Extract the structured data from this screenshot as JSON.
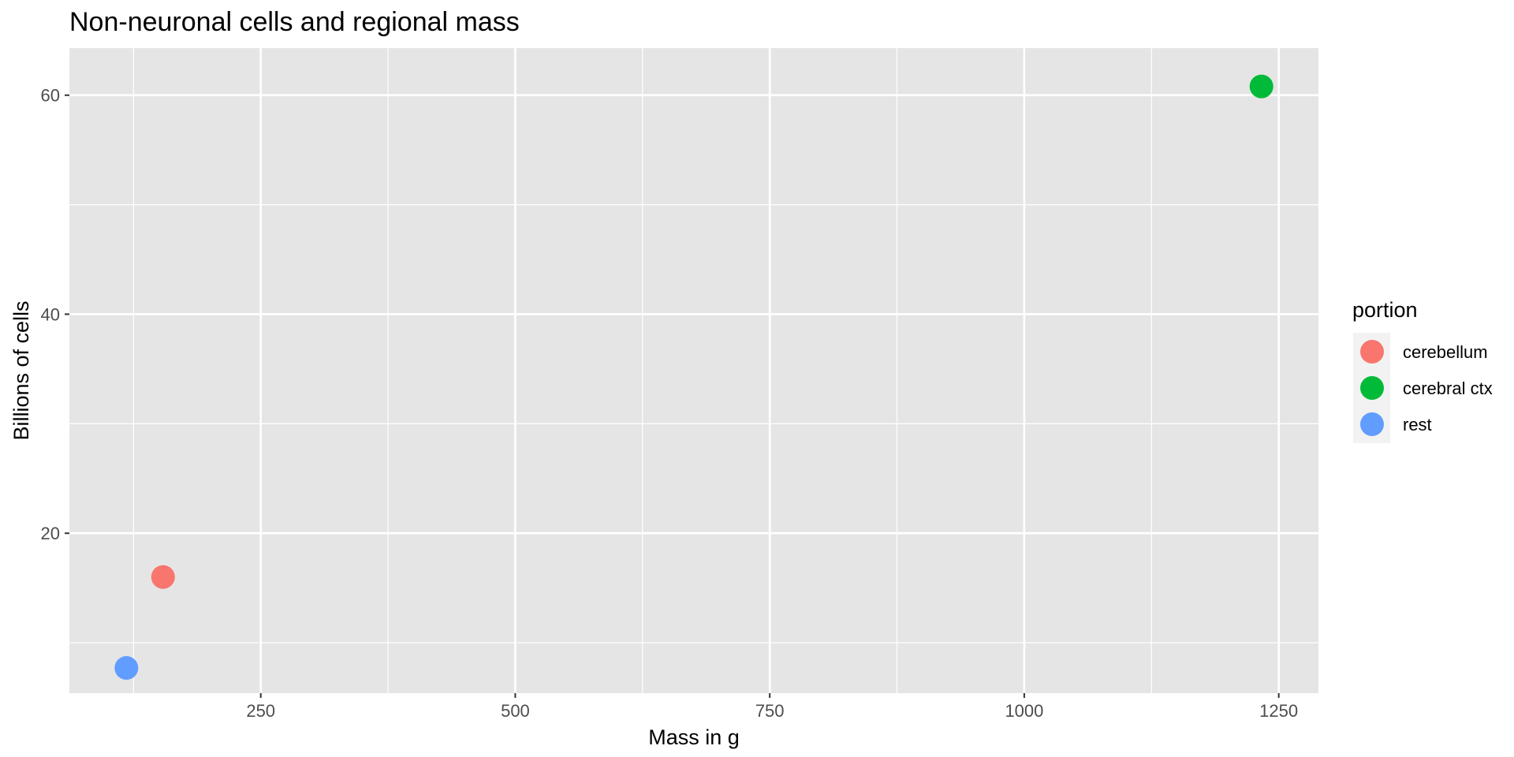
{
  "chart_data": {
    "type": "scatter",
    "title": "Non-neuronal cells and regional mass",
    "xlabel": "Mass in g",
    "ylabel": "Billions of cells",
    "xlim": [
      62,
      1289
    ],
    "ylim": [
      5.4,
      64.3
    ],
    "x_ticks": [
      250,
      500,
      750,
      1000,
      1250
    ],
    "x_tick_labels": [
      "250",
      "500",
      "750",
      "1000",
      "1250"
    ],
    "y_ticks": [
      20,
      40,
      60
    ],
    "y_tick_labels": [
      "20",
      "40",
      "60"
    ],
    "grid": true,
    "legend": {
      "title": "portion",
      "placement": "right"
    },
    "series": [
      {
        "name": "cerebellum",
        "color": "#F8766D",
        "points": [
          {
            "x": 154,
            "y": 16.0
          }
        ]
      },
      {
        "name": "cerebral ctx",
        "color": "#00BA38",
        "points": [
          {
            "x": 1233,
            "y": 60.8
          }
        ]
      },
      {
        "name": "rest",
        "color": "#619CFF",
        "points": [
          {
            "x": 118,
            "y": 7.7
          }
        ]
      }
    ]
  }
}
